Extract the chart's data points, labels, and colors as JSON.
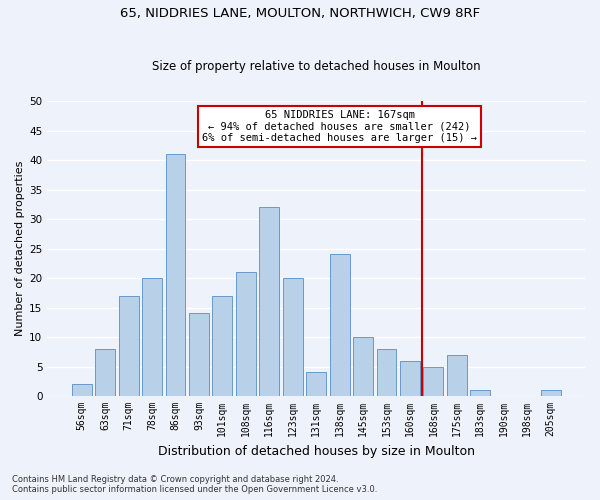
{
  "title1": "65, NIDDRIES LANE, MOULTON, NORTHWICH, CW9 8RF",
  "title2": "Size of property relative to detached houses in Moulton",
  "xlabel": "Distribution of detached houses by size in Moulton",
  "ylabel": "Number of detached properties",
  "categories": [
    "56sqm",
    "63sqm",
    "71sqm",
    "78sqm",
    "86sqm",
    "93sqm",
    "101sqm",
    "108sqm",
    "116sqm",
    "123sqm",
    "131sqm",
    "138sqm",
    "145sqm",
    "153sqm",
    "160sqm",
    "168sqm",
    "175sqm",
    "183sqm",
    "190sqm",
    "198sqm",
    "205sqm"
  ],
  "values": [
    2,
    8,
    17,
    20,
    41,
    14,
    17,
    21,
    32,
    20,
    4,
    24,
    10,
    8,
    6,
    5,
    7,
    1,
    0,
    0,
    1
  ],
  "bar_color": "#b8d0e8",
  "bar_edge_color": "#6699cc",
  "vline_color": "#cc0000",
  "annotation_text": "65 NIDDRIES LANE: 167sqm\n← 94% of detached houses are smaller (242)\n6% of semi-detached houses are larger (15) →",
  "annotation_box_color": "#ffffff",
  "annotation_box_edge_color": "#cc0000",
  "ylim": [
    0,
    50
  ],
  "yticks": [
    0,
    5,
    10,
    15,
    20,
    25,
    30,
    35,
    40,
    45,
    50
  ],
  "footer1": "Contains HM Land Registry data © Crown copyright and database right 2024.",
  "footer2": "Contains public sector information licensed under the Open Government Licence v3.0.",
  "background_color": "#eef2fa",
  "grid_color": "#ffffff",
  "title_fontsize": 9.5,
  "subtitle_fontsize": 8.5,
  "axis_label_fontsize": 8,
  "tick_fontsize": 7,
  "footer_fontsize": 6,
  "annotation_fontsize": 7.5
}
